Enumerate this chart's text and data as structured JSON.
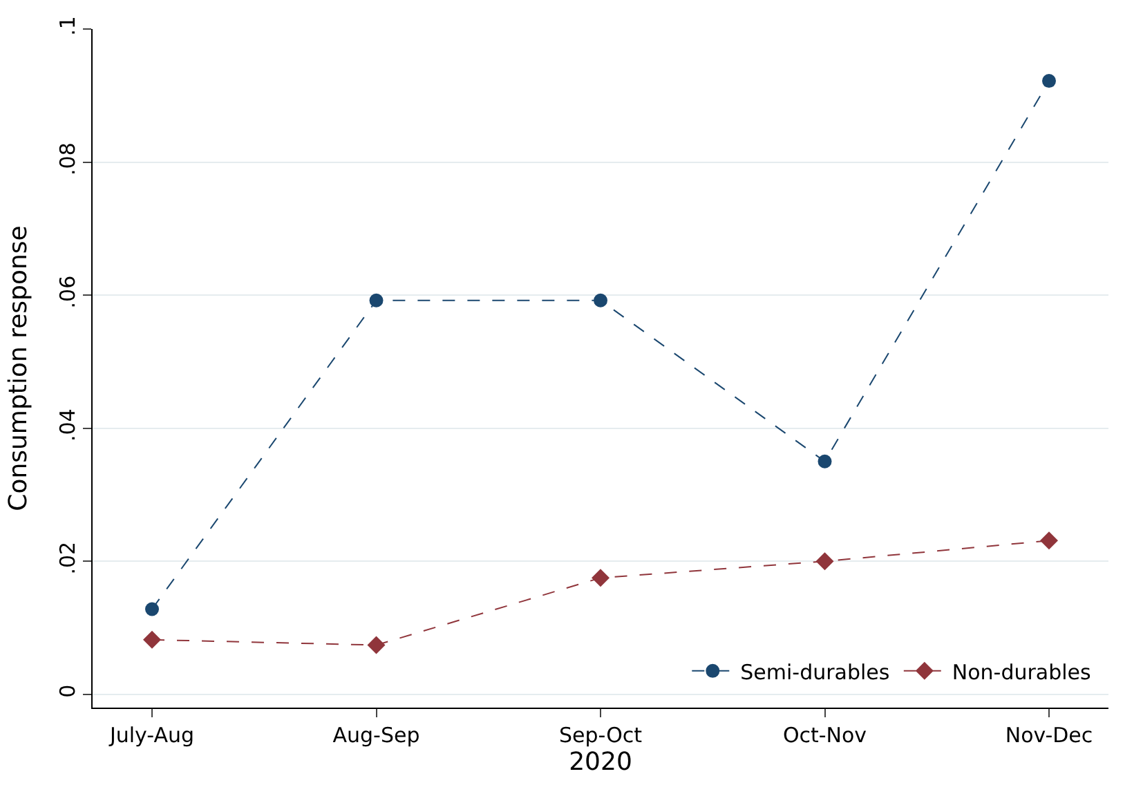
{
  "chart_data": {
    "type": "line",
    "xlabel": "2020",
    "ylabel": "Consumption response",
    "categories": [
      "July-Aug",
      "Aug-Sep",
      "Sep-Oct",
      "Oct-Nov",
      "Nov-Dec"
    ],
    "series": [
      {
        "name": "Semi-durables",
        "color": "#1a476f",
        "marker": "circle",
        "values": [
          0.0128,
          0.0592,
          0.0592,
          0.035,
          0.0922
        ]
      },
      {
        "name": "Non-durables",
        "color": "#90353b",
        "marker": "diamond",
        "values": [
          0.0082,
          0.0074,
          0.0175,
          0.02,
          0.0231
        ]
      }
    ],
    "ylim": [
      -0.002,
      0.1
    ],
    "yticks": [
      0,
      {
        "value": 0.02,
        "label": ".02"
      },
      {
        "value": 0.04,
        "label": ".04"
      },
      {
        "value": 0.06,
        "label": ".06"
      },
      {
        "value": 0.08,
        "label": ".08"
      },
      {
        "value": 0.1,
        "label": ".1"
      }
    ],
    "grid": "y",
    "legend": "bottom right",
    "line_style": "dashed"
  }
}
